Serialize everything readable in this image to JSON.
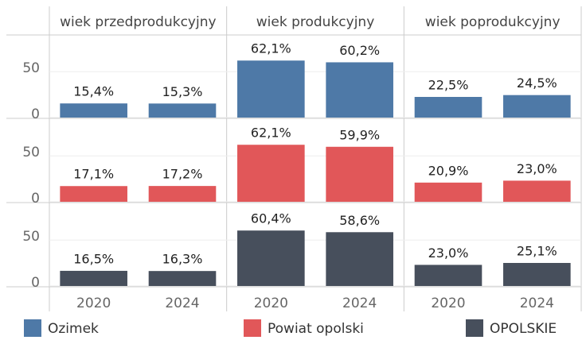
{
  "chart_data": {
    "type": "bar",
    "facets": [
      "wiek przedprodukcyjny",
      "wiek produkcyjny",
      "wiek poprodukcyjny"
    ],
    "categories": [
      "2020",
      "2024"
    ],
    "series": [
      {
        "name": "Ozimek",
        "color": "#4e79a7",
        "values": [
          [
            15.4,
            15.3
          ],
          [
            62.1,
            60.2
          ],
          [
            22.5,
            24.5
          ]
        ],
        "value_labels": [
          [
            "15,4%",
            "15,3%"
          ],
          [
            "62,1%",
            "60,2%"
          ],
          [
            "22,5%",
            "24,5%"
          ]
        ]
      },
      {
        "name": "Powiat opolski",
        "color": "#e15759",
        "values": [
          [
            17.1,
            17.2
          ],
          [
            62.1,
            59.9
          ],
          [
            20.9,
            23.0
          ]
        ],
        "value_labels": [
          [
            "17,1%",
            "17,2%"
          ],
          [
            "62,1%",
            "59,9%"
          ],
          [
            "20,9%",
            "23,0%"
          ]
        ]
      },
      {
        "name": "OPOLSKIE",
        "color": "#474f5c",
        "values": [
          [
            16.5,
            16.3
          ],
          [
            60.4,
            58.6
          ],
          [
            23.0,
            25.1
          ]
        ],
        "value_labels": [
          [
            "16,5%",
            "16,3%"
          ],
          [
            "60,4%",
            "58,6%"
          ],
          [
            "23,0%",
            "25,1%"
          ]
        ]
      }
    ],
    "ylim": [
      0,
      90
    ],
    "yticks": [
      0,
      50
    ],
    "grid": true
  }
}
